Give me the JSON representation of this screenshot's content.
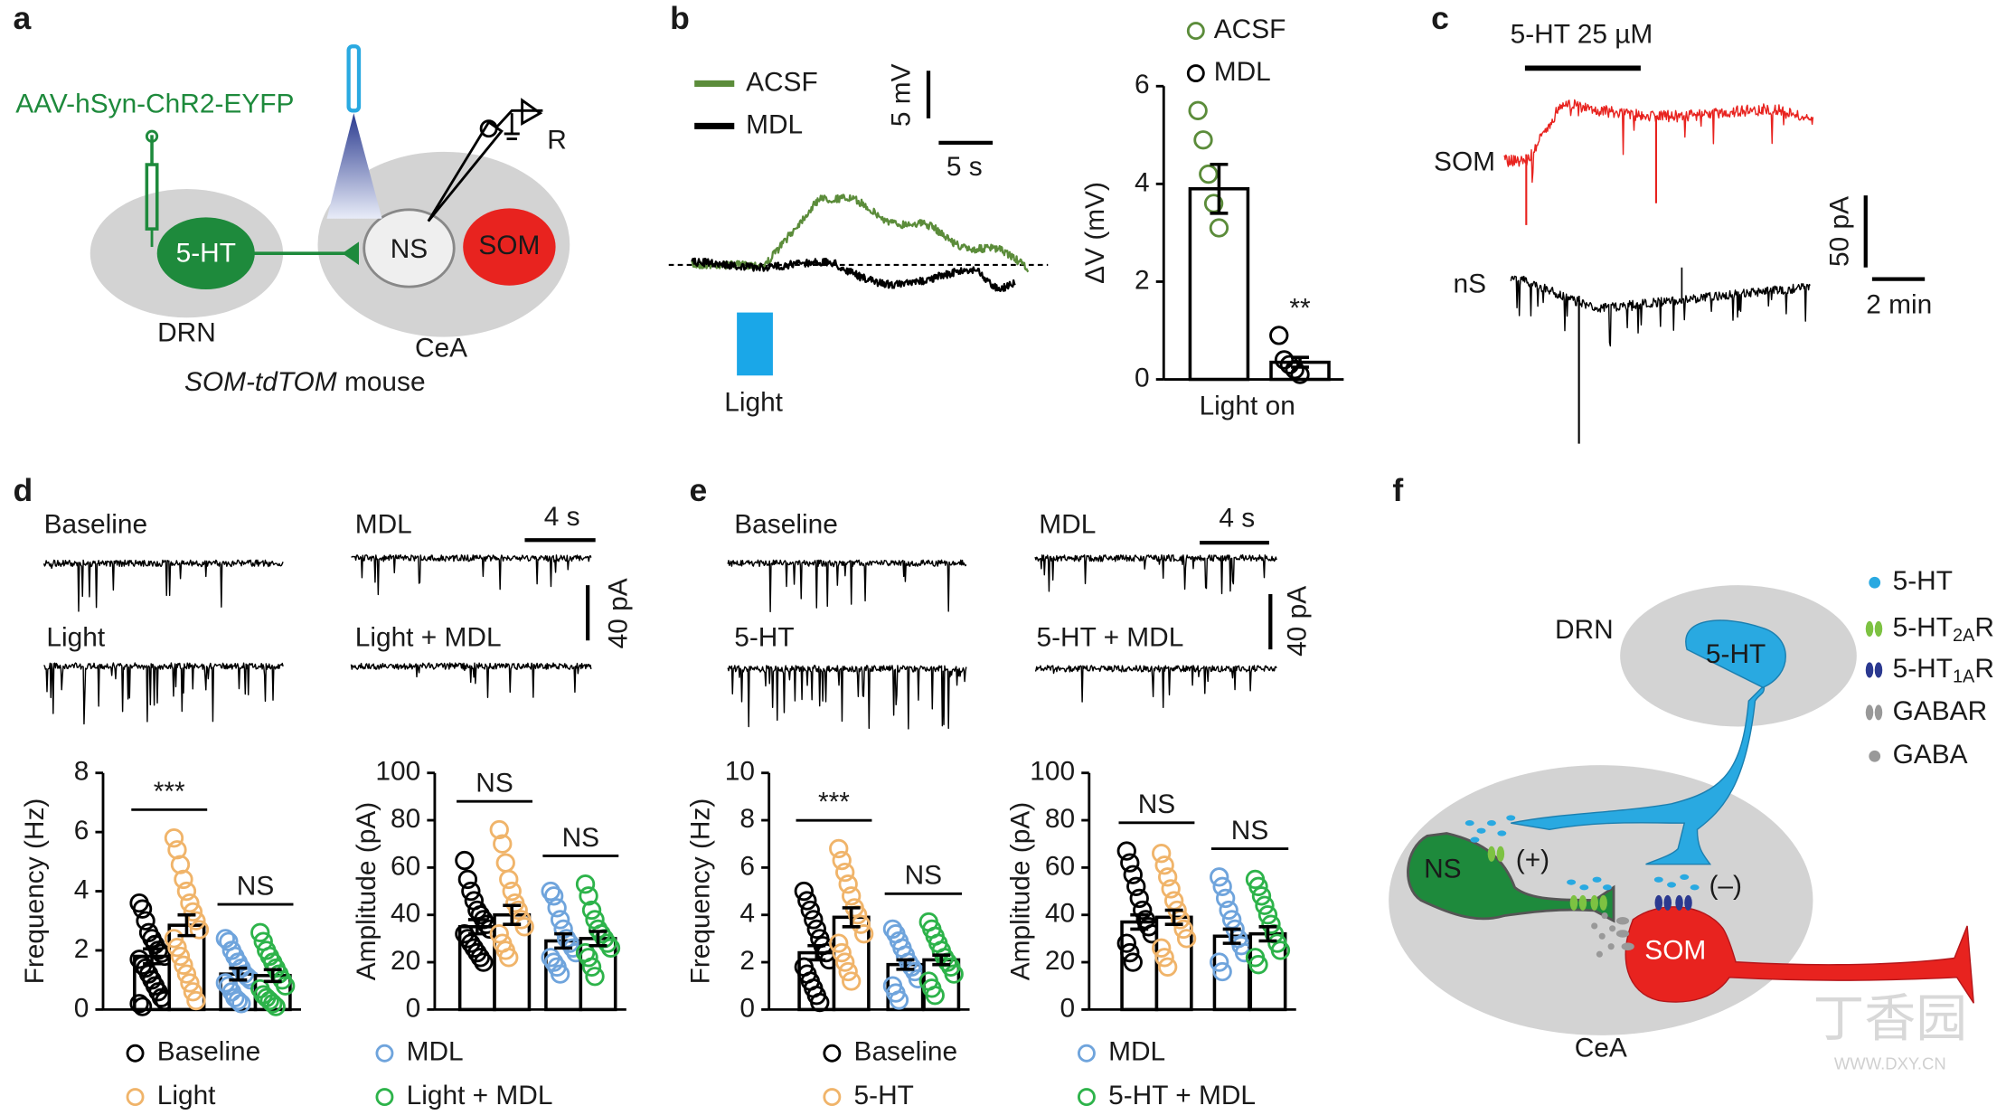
{
  "panel_labels": {
    "a": "a",
    "b": "b",
    "c": "c",
    "d": "d",
    "e": "e",
    "f": "f"
  },
  "a": {
    "virus": "AAV-hSyn-ChR2-EYFP",
    "source_cell": "5-HT",
    "target_cells": [
      "NS",
      "SOM"
    ],
    "regions": [
      "DRN",
      "CeA"
    ],
    "recording": "R",
    "mouse_line": "SOM-tdTOM",
    "mouse_word": "mouse"
  },
  "b": {
    "legend": [
      {
        "name": "ACSF",
        "color": "#5b8c3a"
      },
      {
        "name": "MDL",
        "color": "#000000"
      }
    ],
    "scale_voltage": "5 mV",
    "scale_time": "5 s",
    "stimulus": "Light",
    "chart": {
      "type": "bar",
      "y_label": "ΔV (mV)",
      "x_label": "Light on",
      "ylim": [
        0,
        6
      ],
      "yticks": [
        0,
        2,
        4,
        6
      ],
      "means": [
        3.9,
        0.35
      ],
      "sems": [
        0.5,
        0.1
      ],
      "points": [
        [
          5.5,
          4.9,
          4.2,
          3.6,
          3.1
        ],
        [
          0.9,
          0.4,
          0.3,
          0.2,
          0.1
        ]
      ],
      "significance": [
        "**"
      ]
    }
  },
  "c": {
    "drug": "5-HT  25 µM",
    "cells": [
      "SOM",
      "nS"
    ],
    "scale_current": "50 pA",
    "scale_time": "2 min"
  },
  "d": {
    "conditions": [
      {
        "name": "Baseline",
        "color": "#000000"
      },
      {
        "name": "Light",
        "color": "#f0b46a"
      },
      {
        "name": "MDL",
        "color": "#6fa4dc"
      },
      {
        "name": "Light + MDL",
        "color": "#2db34a"
      }
    ],
    "scale_time": "4 s",
    "scale_current": "40 pA",
    "frequency": {
      "type": "bar",
      "y_label": "Frequency (Hz)",
      "ylim": [
        0,
        8
      ],
      "yticks": [
        0,
        2,
        4,
        6,
        8
      ],
      "means": [
        1.8,
        2.85,
        1.2,
        1.15
      ],
      "sems": [
        0.25,
        0.35,
        0.2,
        0.2
      ],
      "points": [
        [
          3.6,
          3.4,
          3.0,
          2.6,
          2.4,
          2.2,
          2.0,
          1.9,
          1.8,
          1.7,
          1.5,
          1.4,
          1.2,
          1.0,
          0.8,
          0.6,
          0.4,
          0.3,
          0.2,
          0.1
        ],
        [
          5.8,
          5.4,
          4.9,
          4.4,
          4.0,
          3.6,
          3.3,
          3.0,
          2.7,
          2.4,
          2.1,
          1.8,
          1.5,
          1.2,
          0.9,
          0.6,
          0.3
        ],
        [
          2.4,
          2.3,
          2.0,
          1.8,
          1.6,
          1.4,
          1.2,
          1.1,
          1.0,
          0.9,
          0.8,
          0.6,
          0.4,
          0.3,
          0.2
        ],
        [
          2.6,
          2.3,
          2.0,
          1.8,
          1.6,
          1.4,
          1.2,
          1.0,
          0.8,
          0.7,
          0.5,
          0.4,
          0.3,
          0.2,
          0.1
        ]
      ],
      "significance": [
        "***",
        "NS"
      ]
    },
    "amplitude": {
      "type": "bar",
      "y_label": "Amplitude (pA)",
      "ylim": [
        0,
        100
      ],
      "yticks": [
        0,
        20,
        40,
        60,
        80,
        100
      ],
      "means": [
        35,
        40,
        29,
        30
      ],
      "sems": [
        3,
        4,
        3,
        3
      ],
      "points": [
        [
          63,
          55,
          50,
          46,
          42,
          40,
          38,
          36,
          34,
          32,
          30,
          28,
          26,
          24,
          22,
          20
        ],
        [
          76,
          70,
          62,
          55,
          50,
          45,
          42,
          38,
          35,
          32,
          28,
          25,
          22
        ],
        [
          50,
          48,
          43,
          38,
          34,
          30,
          28,
          26,
          24,
          22,
          20,
          18,
          15
        ],
        [
          53,
          48,
          42,
          38,
          34,
          32,
          30,
          28,
          26,
          24,
          22,
          18,
          14
        ]
      ],
      "significance": [
        "NS",
        "NS"
      ]
    }
  },
  "e": {
    "conditions": [
      {
        "name": "Baseline",
        "color": "#000000"
      },
      {
        "name": "5-HT",
        "color": "#f0b46a"
      },
      {
        "name": "MDL",
        "color": "#6fa4dc"
      },
      {
        "name": "5-HT + MDL",
        "color": "#2db34a"
      }
    ],
    "scale_time": "4 s",
    "scale_current": "40 pA",
    "frequency": {
      "type": "bar",
      "y_label": "Frequency (Hz)",
      "ylim": [
        0,
        10
      ],
      "yticks": [
        0,
        2,
        4,
        6,
        8,
        10
      ],
      "means": [
        2.4,
        3.9,
        1.9,
        2.1
      ],
      "sems": [
        0.3,
        0.4,
        0.2,
        0.2
      ],
      "points": [
        [
          5.0,
          4.6,
          4.2,
          3.8,
          3.4,
          3.0,
          2.7,
          2.4,
          2.1,
          1.8,
          1.5,
          1.2,
          0.9,
          0.6,
          0.3
        ],
        [
          6.8,
          6.3,
          5.8,
          5.3,
          4.8,
          4.3,
          4.0,
          3.6,
          3.2,
          2.8,
          2.4,
          2.0,
          1.6,
          1.2
        ],
        [
          3.4,
          3.2,
          2.9,
          2.6,
          2.3,
          2.0,
          1.8,
          1.6,
          1.3,
          1.0,
          0.7,
          0.4
        ],
        [
          3.7,
          3.4,
          3.1,
          2.8,
          2.5,
          2.2,
          2.0,
          1.8,
          1.5,
          1.2,
          0.9,
          0.6
        ]
      ],
      "significance": [
        "***",
        "NS"
      ]
    },
    "amplitude": {
      "type": "bar",
      "y_label": "Amplitude (pA)",
      "ylim": [
        0,
        100
      ],
      "yticks": [
        0,
        20,
        40,
        60,
        80,
        100
      ],
      "means": [
        37,
        39,
        31,
        32
      ],
      "sems": [
        3,
        3,
        3,
        3
      ],
      "points": [
        [
          67,
          62,
          57,
          52,
          47,
          42,
          38,
          35,
          32,
          28,
          24,
          20
        ],
        [
          66,
          61,
          56,
          51,
          46,
          42,
          38,
          34,
          30,
          26,
          22,
          18
        ],
        [
          56,
          52,
          47,
          42,
          38,
          34,
          30,
          27,
          24,
          20,
          16
        ],
        [
          55,
          52,
          48,
          44,
          40,
          36,
          32,
          28,
          25,
          22,
          19
        ]
      ],
      "significance": [
        "NS",
        "NS"
      ]
    }
  },
  "f": {
    "legend": [
      {
        "text": "5-HT",
        "color": "#29a9e1"
      },
      {
        "text": "5-HT",
        "sub": "2A",
        "suffix": "R",
        "color": "#7dc242"
      },
      {
        "text": "5-HT",
        "sub": "1A",
        "suffix": "R",
        "color": "#2b3990"
      },
      {
        "text": "GABAR",
        "color": "#999999"
      },
      {
        "text": "GABA",
        "color": "#999999"
      }
    ],
    "regions": [
      "DRN",
      "CeA"
    ],
    "cells": [
      "5-HT",
      "NS",
      "SOM"
    ],
    "effects": [
      "(+)",
      "(–)"
    ]
  },
  "watermark": {
    "brand": "丁香园",
    "url": "WWW.DXY.CN"
  }
}
